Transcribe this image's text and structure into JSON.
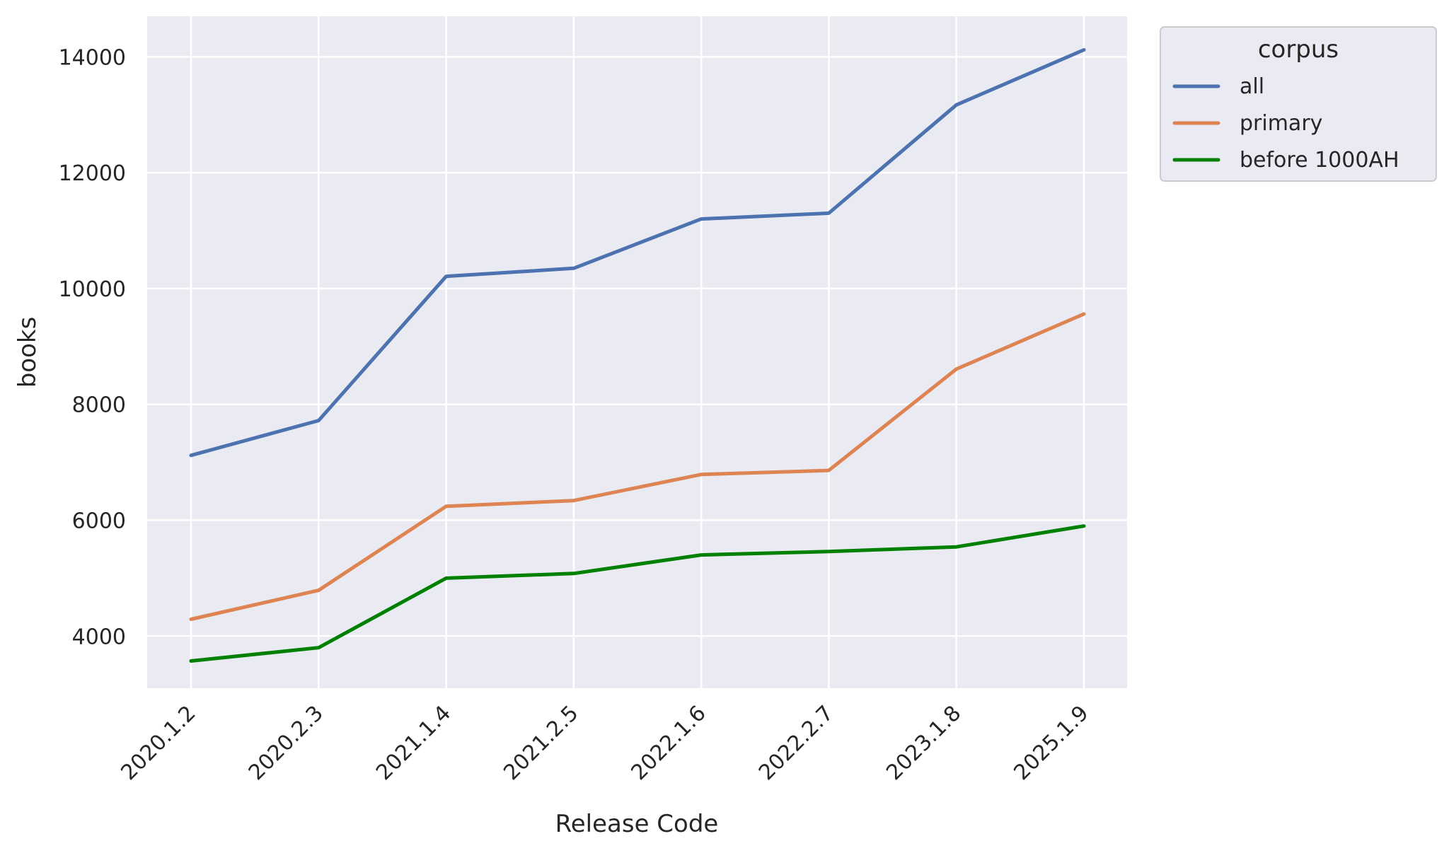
{
  "chart_data": {
    "type": "line",
    "xlabel": "Release Code",
    "ylabel": "books",
    "categories": [
      "2020.1.2",
      "2020.2.3",
      "2021.1.4",
      "2021.2.5",
      "2022.1.6",
      "2022.2.7",
      "2023.1.8",
      "2025.1.9"
    ],
    "yticks": [
      4000,
      6000,
      8000,
      10000,
      12000,
      14000
    ],
    "ylim": [
      3100,
      14700
    ],
    "grid": true,
    "background": "#eaeaf2",
    "legend": {
      "title": "corpus",
      "placement": "outside-top-right"
    },
    "series": [
      {
        "name": "all",
        "color": "#4c72b0",
        "values": [
          7120,
          7720,
          10210,
          10350,
          11200,
          11300,
          13170,
          14120
        ]
      },
      {
        "name": "primary",
        "color": "#dd8452",
        "values": [
          4290,
          4790,
          6240,
          6340,
          6790,
          6860,
          8610,
          9560
        ]
      },
      {
        "name": "before 1000AH",
        "color": "#008000",
        "values": [
          3570,
          3800,
          5000,
          5080,
          5400,
          5460,
          5540,
          5900
        ]
      }
    ]
  }
}
